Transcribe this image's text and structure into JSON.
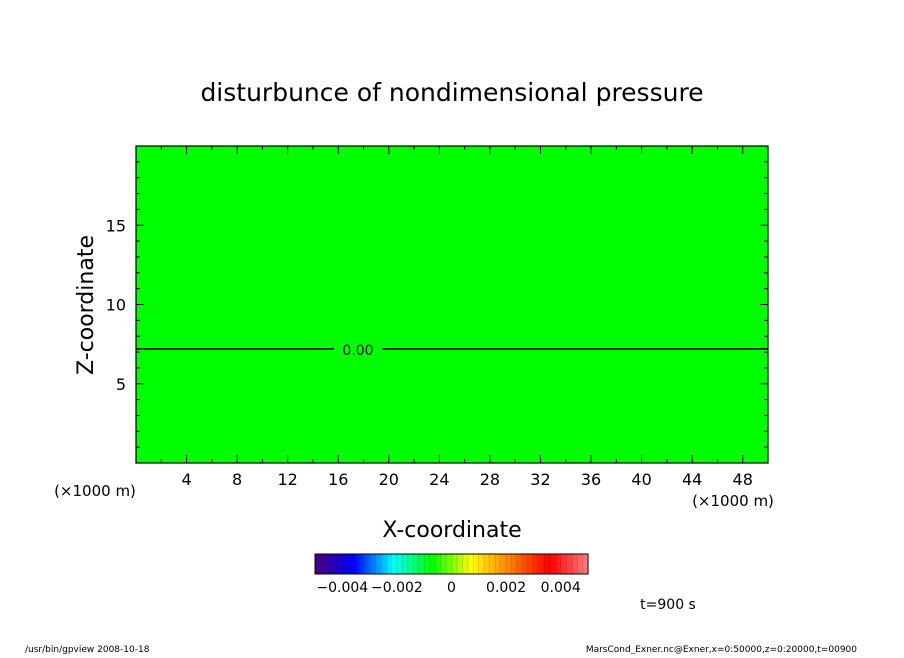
{
  "chart_data": {
    "type": "heatmap",
    "title": "disturbunce of nondimensional pressure",
    "xlabel": "X-coordinate",
    "ylabel": "Z-coordinate",
    "x_unit_label": "(×1000 m)",
    "y_unit_label": "(×1000 m)",
    "xlim": [
      0,
      50
    ],
    "ylim": [
      0,
      20
    ],
    "x_ticks": [
      4,
      8,
      12,
      16,
      20,
      24,
      28,
      32,
      36,
      40,
      44,
      48
    ],
    "y_ticks": [
      5,
      10,
      15
    ],
    "field_value": 0.0,
    "fill_color": "#00ff00",
    "contours": [
      {
        "label": "0.00",
        "z": 7.2
      }
    ],
    "colorbar": {
      "min": -0.005,
      "max": 0.005,
      "tick_labels": [
        "−0.004",
        "−0.002",
        "0",
        "0.002",
        "0.004"
      ],
      "tick_values": [
        -0.004,
        -0.002,
        0,
        0.002,
        0.004
      ],
      "colors": [
        "#4b007f",
        "#0000ff",
        "#00ffff",
        "#00ff00",
        "#ffff00",
        "#ff8000",
        "#ff0000",
        "#ff8080"
      ]
    },
    "time_label": "t=900 s"
  },
  "footer": {
    "left": "/usr/bin/gpview   2008-10-18",
    "right": "MarsCond_Exner.nc@Exner,x=0:50000,z=0:20000,t=00900"
  }
}
